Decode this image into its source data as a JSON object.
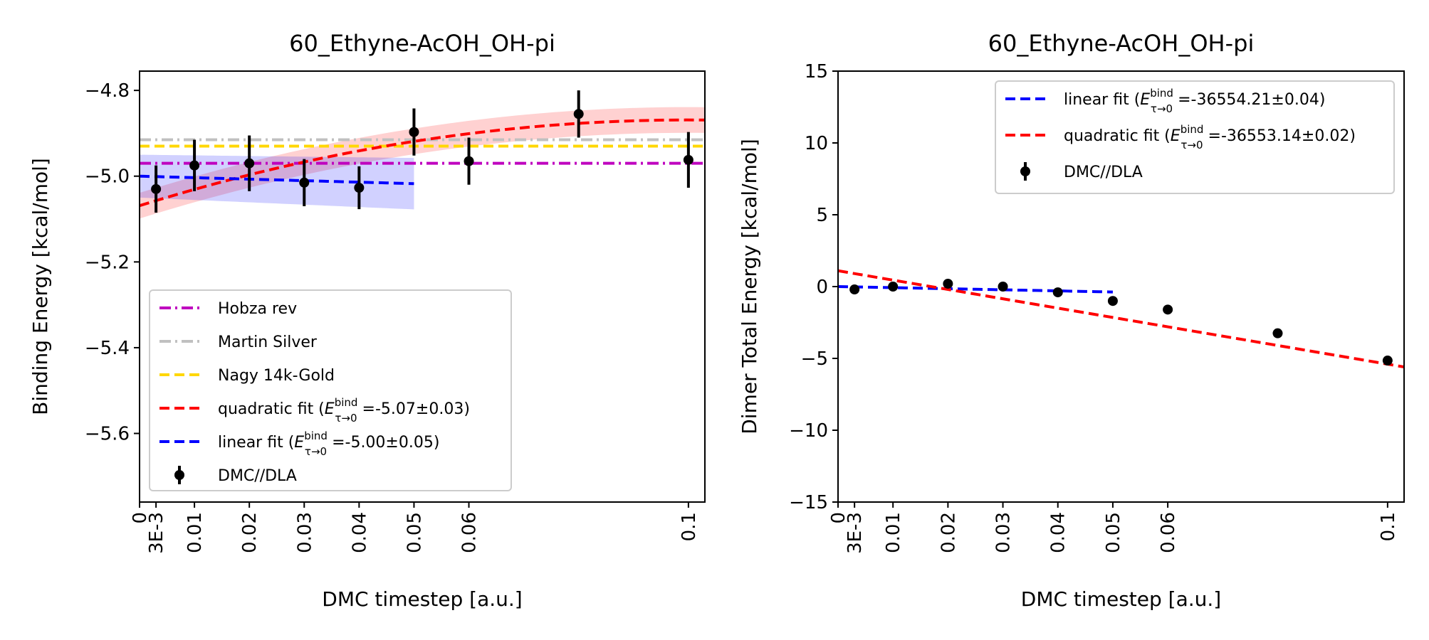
{
  "chart_data": [
    {
      "type": "line",
      "title": "60_Ethyne-AcOH_OH-pi",
      "xlabel": "DMC timestep [a.u.]",
      "ylabel": "Binding Energy [kcal/mol]",
      "xlim": [
        0,
        0.103
      ],
      "ylim": [
        -5.76,
        -4.755
      ],
      "x_ticks": [
        0,
        0.003,
        0.01,
        0.02,
        0.03,
        0.04,
        0.05,
        0.06,
        0.1
      ],
      "x_tick_labels": [
        "0",
        "3E-3",
        "0.01",
        "0.02",
        "0.03",
        "0.04",
        "0.05",
        "0.06",
        "0.1"
      ],
      "y_ticks": [
        -5.6,
        -5.4,
        -5.2,
        -5.0,
        -4.8
      ],
      "y_tick_labels": [
        "−5.6",
        "−5.4",
        "−5.2",
        "−5.0",
        "−4.8"
      ],
      "grid": false,
      "legend_position": "lower-left",
      "reference_lines": [
        {
          "name": "Hobza rev",
          "y": -4.97,
          "color": "#bf00bf",
          "style": "dashdot"
        },
        {
          "name": "Martin Silver",
          "y": -4.915,
          "color": "#c0c0c0",
          "style": "dashdot"
        },
        {
          "name": "Nagy 14k-Gold",
          "y": -4.93,
          "color": "#ffd700",
          "style": "dashed"
        }
      ],
      "fits": [
        {
          "name_prefix": "quadratic fit (",
          "name_E": "E",
          "name_sup": "bind",
          "name_sub": "τ→0",
          "name_value": " =-5.07±0.03)",
          "kind": "quadratic",
          "coef": [
            -5.0689,
            4.0,
            -20.0
          ],
          "x_range": [
            0,
            0.103
          ],
          "band_halfwidth": [
            0.03,
            0.03
          ],
          "color": "#ff0000",
          "style": "dashed"
        },
        {
          "name_prefix": "linear fit (",
          "name_E": "E",
          "name_sup": "bind",
          "name_sub": "τ→0",
          "name_value": " =-5.00±0.05)",
          "kind": "linear",
          "coef": [
            -5.0,
            -0.35
          ],
          "x_range": [
            0,
            0.05
          ],
          "band_halfwidth": [
            0.05,
            0.06
          ],
          "color": "#0000ff",
          "style": "dashed"
        }
      ],
      "series": [
        {
          "name": "DMC//DLA",
          "x": [
            0.003,
            0.01,
            0.02,
            0.03,
            0.04,
            0.05,
            0.06,
            0.08,
            0.1
          ],
          "y": [
            -5.03,
            -4.975,
            -4.97,
            -5.015,
            -5.027,
            -4.897,
            -4.965,
            -4.855,
            -4.962
          ],
          "yerr": [
            0.055,
            0.06,
            0.065,
            0.055,
            0.05,
            0.055,
            0.055,
            0.055,
            0.065
          ],
          "color": "#000000"
        }
      ],
      "legend_order": [
        "Hobza rev",
        "Martin Silver",
        "Nagy 14k-Gold",
        "quadratic",
        "linear",
        "DMC//DLA"
      ]
    },
    {
      "type": "line",
      "title": "60_Ethyne-AcOH_OH-pi",
      "xlabel": "DMC timestep [a.u.]",
      "ylabel": "Dimer Total Energy [kcal/mol]",
      "xlim": [
        0,
        0.103
      ],
      "ylim": [
        -15,
        15
      ],
      "x_ticks": [
        0,
        0.003,
        0.01,
        0.02,
        0.03,
        0.04,
        0.05,
        0.06,
        0.1
      ],
      "x_tick_labels": [
        "0",
        "3E-3",
        "0.01",
        "0.02",
        "0.03",
        "0.04",
        "0.05",
        "0.06",
        "0.1"
      ],
      "y_ticks": [
        -15,
        -10,
        -5,
        0,
        5,
        10,
        15
      ],
      "y_tick_labels": [
        "−15",
        "−10",
        "−5",
        "0",
        "5",
        "10",
        "15"
      ],
      "grid": false,
      "legend_position": "upper-right",
      "fits": [
        {
          "name_prefix": "linear fit (",
          "name_E": "E",
          "name_sup": "bind",
          "name_sub": "τ→0",
          "name_value": " =-36554.21±0.04)",
          "kind": "linear",
          "coef": [
            0.0,
            -7.5
          ],
          "x_range": [
            0,
            0.05
          ],
          "color": "#0000ff",
          "style": "dashed"
        },
        {
          "name_prefix": "quadratic fit (",
          "name_E": "E",
          "name_sup": "bind",
          "name_sub": "τ→0",
          "name_value": " =-36553.14±0.02)",
          "kind": "quadratic",
          "coef": [
            1.1,
            -65.0,
            0.0
          ],
          "x_range": [
            0,
            0.103
          ],
          "color": "#ff0000",
          "style": "dashed"
        }
      ],
      "series": [
        {
          "name": "DMC//DLA",
          "x": [
            0.003,
            0.01,
            0.02,
            0.03,
            0.04,
            0.05,
            0.06,
            0.08,
            0.1
          ],
          "y": [
            -0.2,
            0.0,
            0.2,
            0.0,
            -0.4,
            -1.0,
            -1.6,
            -3.25,
            -5.15
          ],
          "yerr": [
            0.0,
            0.0,
            0.0,
            0.0,
            0.0,
            0.0,
            0.0,
            0.0,
            0.0
          ],
          "color": "#000000"
        }
      ],
      "legend_order": [
        "linear",
        "quadratic",
        "DMC//DLA"
      ]
    }
  ]
}
